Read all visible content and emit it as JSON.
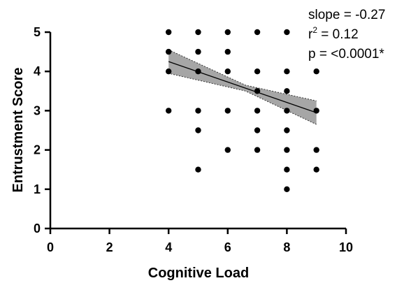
{
  "chart_data": {
    "type": "scatter",
    "xlabel": "Cognitive Load",
    "ylabel": "Entrustment  Score",
    "xlim": [
      0,
      10
    ],
    "ylim": [
      0,
      5
    ],
    "x_ticks": [
      "0",
      "2",
      "4",
      "6",
      "8",
      "10"
    ],
    "y_ticks": [
      "0",
      "1",
      "2",
      "3",
      "4",
      "5"
    ],
    "points": [
      [
        4,
        5
      ],
      [
        4,
        4.5
      ],
      [
        4,
        4
      ],
      [
        4,
        3
      ],
      [
        5,
        5
      ],
      [
        5,
        4.5
      ],
      [
        5,
        4
      ],
      [
        5,
        3
      ],
      [
        5,
        2.5
      ],
      [
        5,
        1.5
      ],
      [
        6,
        5
      ],
      [
        6,
        4.5
      ],
      [
        6,
        4
      ],
      [
        6,
        3
      ],
      [
        6,
        2
      ],
      [
        7,
        5
      ],
      [
        7,
        4
      ],
      [
        7,
        3.5
      ],
      [
        7,
        3
      ],
      [
        7,
        2.5
      ],
      [
        7,
        2
      ],
      [
        8,
        5
      ],
      [
        8,
        4
      ],
      [
        8,
        3.5
      ],
      [
        8,
        3
      ],
      [
        8,
        2.5
      ],
      [
        8,
        2
      ],
      [
        8,
        1.5
      ],
      [
        8,
        1
      ],
      [
        9,
        4
      ],
      [
        9,
        3
      ],
      [
        9,
        2
      ],
      [
        9,
        1.5
      ]
    ],
    "fit_line": {
      "x": [
        4,
        9
      ],
      "y": [
        4.25,
        2.95
      ],
      "ci_upper": [
        4.55,
        3.25
      ],
      "ci_lower": [
        3.95,
        2.65
      ],
      "ci_mid_x": 6.6,
      "ci_mid_upper": 3.65,
      "ci_mid_lower": 3.5
    },
    "annotations": {
      "slope": "slope = -0.27",
      "r2_prefix": "r",
      "r2_sup": "2",
      "r2_rest": " = 0.12",
      "p": "p = <0.0001*"
    },
    "colors": {
      "points": "#000000",
      "ci_fill": "#a6a6a6",
      "line": "#000000"
    }
  }
}
